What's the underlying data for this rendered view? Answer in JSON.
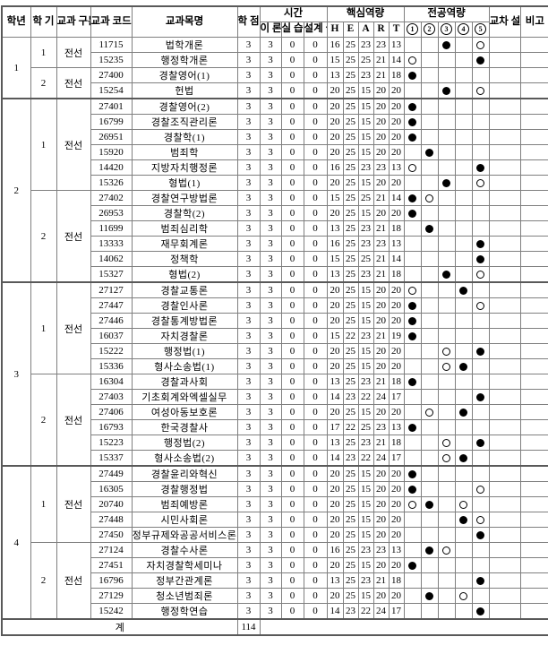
{
  "colors": {
    "background": "#ffffff",
    "text": "#000000",
    "grid_border": "#7f7f7f",
    "strong_border": "#595959",
    "dot_fill": "#000000"
  },
  "header": {
    "grade": "학년",
    "semester": "학\n기",
    "category": "교과\n구분",
    "code": "교과\n코드",
    "course_name": "교과목명",
    "credit": "학\n점",
    "time_group": "시간",
    "time_cols": [
      "이\n론",
      "실\n습",
      "설계\n실무"
    ],
    "core_group": "핵심역량",
    "core_cols": [
      "H",
      "E",
      "A",
      "R",
      "T"
    ],
    "major_group": "전공역량",
    "major_cols": [
      "1",
      "2",
      "3",
      "4",
      "5"
    ],
    "cross": "교차\n설강",
    "note": "비고"
  },
  "legend": {
    "filled_mark": "●",
    "open_mark": "○"
  },
  "rows": [
    {
      "grade": "1",
      "semester": "1",
      "category": "전선",
      "code": "11715",
      "name": "법학개론",
      "credit": "3",
      "theory": "3",
      "practice": "0",
      "design": "0",
      "heart": [
        "16",
        "25",
        "23",
        "23",
        "13"
      ],
      "major": [
        "",
        "",
        "filled",
        "",
        "open"
      ],
      "cross": "",
      "note": ""
    },
    {
      "grade": "1",
      "semester": "1",
      "category": "전선",
      "code": "15235",
      "name": "행정학개론",
      "credit": "3",
      "theory": "3",
      "practice": "0",
      "design": "0",
      "heart": [
        "15",
        "25",
        "25",
        "21",
        "14"
      ],
      "major": [
        "open",
        "",
        "",
        "",
        "filled"
      ],
      "cross": "",
      "note": ""
    },
    {
      "grade": "1",
      "semester": "2",
      "category": "전선",
      "code": "27400",
      "name": "경찰영어(1)",
      "credit": "3",
      "theory": "3",
      "practice": "0",
      "design": "0",
      "heart": [
        "13",
        "25",
        "23",
        "21",
        "18"
      ],
      "major": [
        "filled",
        "",
        "",
        "",
        ""
      ],
      "cross": "",
      "note": ""
    },
    {
      "grade": "1",
      "semester": "2",
      "category": "전선",
      "code": "15254",
      "name": "헌법",
      "credit": "3",
      "theory": "3",
      "practice": "0",
      "design": "0",
      "heart": [
        "20",
        "25",
        "15",
        "20",
        "20"
      ],
      "major": [
        "",
        "",
        "filled",
        "",
        "open"
      ],
      "cross": "",
      "note": ""
    },
    {
      "grade": "2",
      "semester": "1",
      "category": "전선",
      "code": "27401",
      "name": "경찰영어(2)",
      "credit": "3",
      "theory": "3",
      "practice": "0",
      "design": "0",
      "heart": [
        "20",
        "25",
        "15",
        "20",
        "20"
      ],
      "major": [
        "filled",
        "",
        "",
        "",
        ""
      ],
      "cross": "",
      "note": ""
    },
    {
      "grade": "2",
      "semester": "1",
      "category": "전선",
      "code": "16799",
      "name": "경찰조직관리론",
      "credit": "3",
      "theory": "3",
      "practice": "0",
      "design": "0",
      "heart": [
        "20",
        "25",
        "15",
        "20",
        "20"
      ],
      "major": [
        "filled",
        "",
        "",
        "",
        ""
      ],
      "cross": "",
      "note": ""
    },
    {
      "grade": "2",
      "semester": "1",
      "category": "전선",
      "code": "26951",
      "name": "경찰학(1)",
      "credit": "3",
      "theory": "3",
      "practice": "0",
      "design": "0",
      "heart": [
        "20",
        "25",
        "15",
        "20",
        "20"
      ],
      "major": [
        "filled",
        "",
        "",
        "",
        ""
      ],
      "cross": "",
      "note": ""
    },
    {
      "grade": "2",
      "semester": "1",
      "category": "전선",
      "code": "15920",
      "name": "범죄학",
      "credit": "3",
      "theory": "3",
      "practice": "0",
      "design": "0",
      "heart": [
        "20",
        "25",
        "15",
        "20",
        "20"
      ],
      "major": [
        "",
        "filled",
        "",
        "",
        ""
      ],
      "cross": "",
      "note": ""
    },
    {
      "grade": "2",
      "semester": "1",
      "category": "전선",
      "code": "14420",
      "name": "지방자치행정론",
      "credit": "3",
      "theory": "3",
      "practice": "0",
      "design": "0",
      "heart": [
        "16",
        "25",
        "23",
        "23",
        "13"
      ],
      "major": [
        "open",
        "",
        "",
        "",
        "filled"
      ],
      "cross": "",
      "note": ""
    },
    {
      "grade": "2",
      "semester": "1",
      "category": "전선",
      "code": "15326",
      "name": "형법(1)",
      "credit": "3",
      "theory": "3",
      "practice": "0",
      "design": "0",
      "heart": [
        "20",
        "25",
        "15",
        "20",
        "20"
      ],
      "major": [
        "",
        "",
        "filled",
        "",
        "open"
      ],
      "cross": "",
      "note": ""
    },
    {
      "grade": "2",
      "semester": "2",
      "category": "전선",
      "code": "27402",
      "name": "경찰연구방법론",
      "credit": "3",
      "theory": "3",
      "practice": "0",
      "design": "0",
      "heart": [
        "15",
        "25",
        "25",
        "21",
        "14"
      ],
      "major": [
        "filled",
        "open",
        "",
        "",
        ""
      ],
      "cross": "",
      "note": ""
    },
    {
      "grade": "2",
      "semester": "2",
      "category": "전선",
      "code": "26953",
      "name": "경찰학(2)",
      "credit": "3",
      "theory": "3",
      "practice": "0",
      "design": "0",
      "heart": [
        "20",
        "25",
        "15",
        "20",
        "20"
      ],
      "major": [
        "filled",
        "",
        "",
        "",
        ""
      ],
      "cross": "",
      "note": ""
    },
    {
      "grade": "2",
      "semester": "2",
      "category": "전선",
      "code": "11699",
      "name": "범죄심리학",
      "credit": "3",
      "theory": "3",
      "practice": "0",
      "design": "0",
      "heart": [
        "13",
        "25",
        "23",
        "21",
        "18"
      ],
      "major": [
        "",
        "filled",
        "",
        "",
        ""
      ],
      "cross": "",
      "note": ""
    },
    {
      "grade": "2",
      "semester": "2",
      "category": "전선",
      "code": "13333",
      "name": "재무회계론",
      "credit": "3",
      "theory": "3",
      "practice": "0",
      "design": "0",
      "heart": [
        "16",
        "25",
        "23",
        "23",
        "13"
      ],
      "major": [
        "",
        "",
        "",
        "",
        "filled"
      ],
      "cross": "",
      "note": ""
    },
    {
      "grade": "2",
      "semester": "2",
      "category": "전선",
      "code": "14062",
      "name": "정책학",
      "credit": "3",
      "theory": "3",
      "practice": "0",
      "design": "0",
      "heart": [
        "15",
        "25",
        "25",
        "21",
        "14"
      ],
      "major": [
        "",
        "",
        "",
        "",
        "filled"
      ],
      "cross": "",
      "note": ""
    },
    {
      "grade": "2",
      "semester": "2",
      "category": "전선",
      "code": "15327",
      "name": "형법(2)",
      "credit": "3",
      "theory": "3",
      "practice": "0",
      "design": "0",
      "heart": [
        "13",
        "25",
        "23",
        "21",
        "18"
      ],
      "major": [
        "",
        "",
        "filled",
        "",
        "open"
      ],
      "cross": "",
      "note": ""
    },
    {
      "grade": "3",
      "semester": "1",
      "category": "전선",
      "code": "27127",
      "name": "경찰교통론",
      "credit": "3",
      "theory": "3",
      "practice": "0",
      "design": "0",
      "heart": [
        "20",
        "25",
        "15",
        "20",
        "20"
      ],
      "major": [
        "open",
        "",
        "",
        "filled",
        ""
      ],
      "cross": "",
      "note": ""
    },
    {
      "grade": "3",
      "semester": "1",
      "category": "전선",
      "code": "27447",
      "name": "경찰인사론",
      "credit": "3",
      "theory": "3",
      "practice": "0",
      "design": "0",
      "heart": [
        "20",
        "25",
        "15",
        "20",
        "20"
      ],
      "major": [
        "filled",
        "",
        "",
        "",
        "open"
      ],
      "cross": "",
      "note": ""
    },
    {
      "grade": "3",
      "semester": "1",
      "category": "전선",
      "code": "27446",
      "name": "경찰통계방법론",
      "credit": "3",
      "theory": "3",
      "practice": "0",
      "design": "0",
      "heart": [
        "20",
        "25",
        "15",
        "20",
        "20"
      ],
      "major": [
        "filled",
        "",
        "",
        "",
        ""
      ],
      "cross": "",
      "note": ""
    },
    {
      "grade": "3",
      "semester": "1",
      "category": "전선",
      "code": "16037",
      "name": "자치경찰론",
      "credit": "3",
      "theory": "3",
      "practice": "0",
      "design": "0",
      "heart": [
        "15",
        "22",
        "23",
        "21",
        "19"
      ],
      "major": [
        "filled",
        "",
        "",
        "",
        ""
      ],
      "cross": "",
      "note": ""
    },
    {
      "grade": "3",
      "semester": "1",
      "category": "전선",
      "code": "15222",
      "name": "행정법(1)",
      "credit": "3",
      "theory": "3",
      "practice": "0",
      "design": "0",
      "heart": [
        "20",
        "25",
        "15",
        "20",
        "20"
      ],
      "major": [
        "",
        "",
        "open",
        "",
        "filled"
      ],
      "cross": "",
      "note": ""
    },
    {
      "grade": "3",
      "semester": "1",
      "category": "전선",
      "code": "15336",
      "name": "형사소송법(1)",
      "credit": "3",
      "theory": "3",
      "practice": "0",
      "design": "0",
      "heart": [
        "20",
        "25",
        "15",
        "20",
        "20"
      ],
      "major": [
        "",
        "",
        "open",
        "filled",
        ""
      ],
      "cross": "",
      "note": ""
    },
    {
      "grade": "3",
      "semester": "2",
      "category": "전선",
      "code": "16304",
      "name": "경찰과사회",
      "credit": "3",
      "theory": "3",
      "practice": "0",
      "design": "0",
      "heart": [
        "13",
        "25",
        "23",
        "21",
        "18"
      ],
      "major": [
        "filled",
        "",
        "",
        "",
        ""
      ],
      "cross": "",
      "note": ""
    },
    {
      "grade": "3",
      "semester": "2",
      "category": "전선",
      "code": "27403",
      "name": "기초회계와엑셀실무",
      "credit": "3",
      "theory": "3",
      "practice": "0",
      "design": "0",
      "heart": [
        "14",
        "23",
        "22",
        "24",
        "17"
      ],
      "major": [
        "",
        "",
        "",
        "",
        "filled"
      ],
      "cross": "",
      "note": ""
    },
    {
      "grade": "3",
      "semester": "2",
      "category": "전선",
      "code": "27406",
      "name": "여성아동보호론",
      "credit": "3",
      "theory": "3",
      "practice": "0",
      "design": "0",
      "heart": [
        "20",
        "25",
        "15",
        "20",
        "20"
      ],
      "major": [
        "",
        "open",
        "",
        "filled",
        ""
      ],
      "cross": "",
      "note": ""
    },
    {
      "grade": "3",
      "semester": "2",
      "category": "전선",
      "code": "16793",
      "name": "한국경찰사",
      "credit": "3",
      "theory": "3",
      "practice": "0",
      "design": "0",
      "heart": [
        "17",
        "22",
        "25",
        "23",
        "13"
      ],
      "major": [
        "filled",
        "",
        "",
        "",
        ""
      ],
      "cross": "",
      "note": ""
    },
    {
      "grade": "3",
      "semester": "2",
      "category": "전선",
      "code": "15223",
      "name": "행정법(2)",
      "credit": "3",
      "theory": "3",
      "practice": "0",
      "design": "0",
      "heart": [
        "13",
        "25",
        "23",
        "21",
        "18"
      ],
      "major": [
        "",
        "",
        "open",
        "",
        "filled"
      ],
      "cross": "",
      "note": ""
    },
    {
      "grade": "3",
      "semester": "2",
      "category": "전선",
      "code": "15337",
      "name": "형사소송법(2)",
      "credit": "3",
      "theory": "3",
      "practice": "0",
      "design": "0",
      "heart": [
        "14",
        "23",
        "22",
        "24",
        "17"
      ],
      "major": [
        "",
        "",
        "open",
        "filled",
        ""
      ],
      "cross": "",
      "note": ""
    },
    {
      "grade": "4",
      "semester": "1",
      "category": "전선",
      "code": "27449",
      "name": "경찰윤리와혁신",
      "credit": "3",
      "theory": "3",
      "practice": "0",
      "design": "0",
      "heart": [
        "20",
        "25",
        "15",
        "20",
        "20"
      ],
      "major": [
        "filled",
        "",
        "",
        "",
        ""
      ],
      "cross": "",
      "note": ""
    },
    {
      "grade": "4",
      "semester": "1",
      "category": "전선",
      "code": "16305",
      "name": "경찰행정법",
      "credit": "3",
      "theory": "3",
      "practice": "0",
      "design": "0",
      "heart": [
        "20",
        "25",
        "15",
        "20",
        "20"
      ],
      "major": [
        "filled",
        "",
        "",
        "",
        "open"
      ],
      "cross": "",
      "note": ""
    },
    {
      "grade": "4",
      "semester": "1",
      "category": "전선",
      "code": "20740",
      "name": "범죄예방론",
      "credit": "3",
      "theory": "3",
      "practice": "0",
      "design": "0",
      "heart": [
        "20",
        "25",
        "15",
        "20",
        "20"
      ],
      "major": [
        "open",
        "filled",
        "",
        "open",
        ""
      ],
      "cross": "",
      "note": ""
    },
    {
      "grade": "4",
      "semester": "1",
      "category": "전선",
      "code": "27448",
      "name": "시민사회론",
      "credit": "3",
      "theory": "3",
      "practice": "0",
      "design": "0",
      "heart": [
        "20",
        "25",
        "15",
        "20",
        "20"
      ],
      "major": [
        "",
        "",
        "",
        "filled",
        "open"
      ],
      "cross": "",
      "note": ""
    },
    {
      "grade": "4",
      "semester": "1",
      "category": "전선",
      "code": "27450",
      "name": "정부규제와공공서비스론",
      "credit": "3",
      "theory": "3",
      "practice": "0",
      "design": "0",
      "heart": [
        "20",
        "25",
        "15",
        "20",
        "20"
      ],
      "major": [
        "",
        "",
        "",
        "",
        "filled"
      ],
      "cross": "",
      "note": ""
    },
    {
      "grade": "4",
      "semester": "2",
      "category": "전선",
      "code": "27124",
      "name": "경찰수사론",
      "credit": "3",
      "theory": "3",
      "practice": "0",
      "design": "0",
      "heart": [
        "16",
        "25",
        "23",
        "23",
        "13"
      ],
      "major": [
        "",
        "filled",
        "open",
        "",
        ""
      ],
      "cross": "",
      "note": ""
    },
    {
      "grade": "4",
      "semester": "2",
      "category": "전선",
      "code": "27451",
      "name": "자치경찰학세미나",
      "credit": "3",
      "theory": "3",
      "practice": "0",
      "design": "0",
      "heart": [
        "20",
        "25",
        "15",
        "20",
        "20"
      ],
      "major": [
        "filled",
        "",
        "",
        "",
        ""
      ],
      "cross": "",
      "note": ""
    },
    {
      "grade": "4",
      "semester": "2",
      "category": "전선",
      "code": "16796",
      "name": "정부간관계론",
      "credit": "3",
      "theory": "3",
      "practice": "0",
      "design": "0",
      "heart": [
        "13",
        "25",
        "23",
        "21",
        "18"
      ],
      "major": [
        "",
        "",
        "",
        "",
        "filled"
      ],
      "cross": "",
      "note": ""
    },
    {
      "grade": "4",
      "semester": "2",
      "category": "전선",
      "code": "27129",
      "name": "청소년범죄론",
      "credit": "3",
      "theory": "3",
      "practice": "0",
      "design": "0",
      "heart": [
        "20",
        "25",
        "15",
        "20",
        "20"
      ],
      "major": [
        "",
        "filled",
        "",
        "open",
        ""
      ],
      "cross": "",
      "note": ""
    },
    {
      "grade": "4",
      "semester": "2",
      "category": "전선",
      "code": "15242",
      "name": "행정학연습",
      "credit": "3",
      "theory": "3",
      "practice": "0",
      "design": "0",
      "heart": [
        "14",
        "23",
        "22",
        "24",
        "17"
      ],
      "major": [
        "",
        "",
        "",
        "",
        "filled"
      ],
      "cross": "",
      "note": ""
    }
  ],
  "total": {
    "label": "계",
    "credit_sum": "114"
  }
}
